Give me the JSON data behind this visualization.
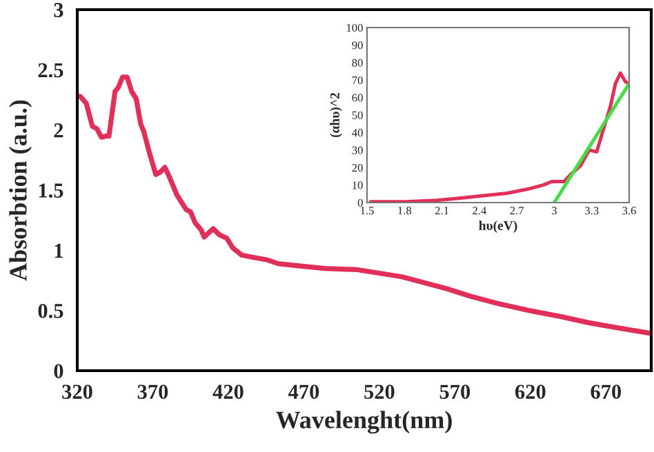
{
  "chart_data": [
    {
      "type": "line",
      "xlabel": "Wavelenght(nm)",
      "ylabel": "Absorbtion (a.u.)",
      "xlim": [
        320,
        700
      ],
      "xticks": [
        320,
        370,
        420,
        470,
        520,
        570,
        620,
        670
      ],
      "ylim": [
        0,
        3
      ],
      "yticks": [
        0,
        0.5,
        1,
        1.5,
        2,
        2.5,
        3
      ],
      "grid": false,
      "series": [
        {
          "color": "#e0305a",
          "x": [
            320,
            322,
            326,
            330,
            333,
            336,
            339,
            341,
            345,
            347,
            350,
            353,
            356,
            359,
            362,
            364,
            368,
            372,
            375,
            378,
            381,
            386,
            389,
            392,
            395,
            398,
            402,
            404,
            410,
            414,
            419,
            423,
            429,
            437,
            446,
            453,
            468,
            484,
            505,
            520,
            535,
            550,
            565,
            580,
            598,
            619,
            640,
            658,
            676,
            700
          ],
          "values": [
            2.28,
            2.28,
            2.22,
            2.03,
            2.01,
            1.94,
            1.95,
            1.95,
            2.32,
            2.35,
            2.44,
            2.44,
            2.32,
            2.26,
            2.05,
            1.99,
            1.8,
            1.63,
            1.65,
            1.69,
            1.61,
            1.46,
            1.4,
            1.34,
            1.32,
            1.23,
            1.17,
            1.11,
            1.18,
            1.13,
            1.1,
            1.02,
            0.96,
            0.94,
            0.92,
            0.89,
            0.87,
            0.85,
            0.84,
            0.81,
            0.78,
            0.73,
            0.68,
            0.62,
            0.56,
            0.5,
            0.45,
            0.4,
            0.36,
            0.31
          ]
        }
      ]
    },
    {
      "type": "line",
      "xlabel": "hυ(eV)",
      "ylabel": "(αhυ)^2",
      "xlim": [
        1.5,
        3.6
      ],
      "xticks": [
        1.5,
        1.8,
        2.1,
        2.4,
        2.7,
        3,
        3.3,
        3.6
      ],
      "ylim": [
        0,
        100
      ],
      "yticks": [
        0,
        10,
        20,
        30,
        40,
        50,
        60,
        70,
        80,
        90,
        100
      ],
      "grid": false,
      "series": [
        {
          "color": "#e0305a",
          "x": [
            1.53,
            1.81,
            2.06,
            2.25,
            2.43,
            2.62,
            2.8,
            2.91,
            2.98,
            3.08,
            3.13,
            3.21,
            3.28,
            3.34,
            3.39,
            3.45,
            3.49,
            3.53,
            3.57,
            3.6
          ],
          "values": [
            0.5,
            0.5,
            1.3,
            2.6,
            3.9,
            5.3,
            7.9,
            10,
            12,
            12,
            16,
            21,
            30,
            29,
            41,
            55,
            68,
            74,
            69,
            68
          ]
        },
        {
          "color": "#44dd44",
          "x": [
            3.0,
            3.6
          ],
          "values": [
            0,
            68
          ]
        }
      ]
    }
  ]
}
